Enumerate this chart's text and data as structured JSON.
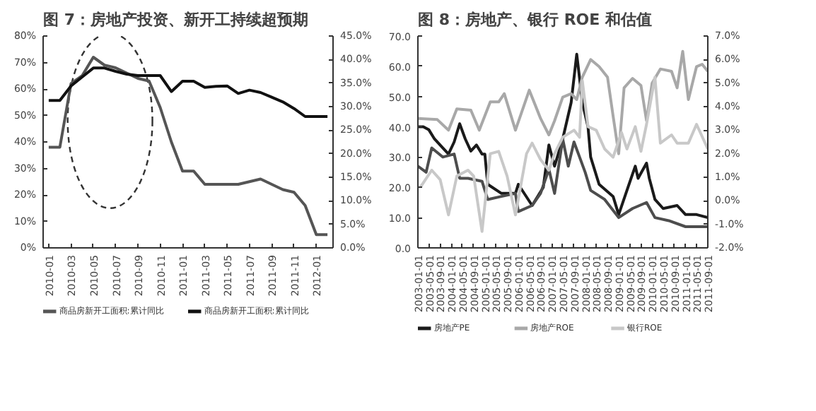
{
  "chart_data": [
    {
      "type": "line",
      "title": "图 7：房地产投资、新开工持续超预期",
      "categories": [
        "2010-01",
        null,
        "2010-03",
        null,
        "2010-05",
        null,
        "2010-07",
        null,
        "2010-09",
        null,
        "2010-11",
        null,
        "2011-01",
        null,
        "2011-03",
        null,
        "2011-05",
        null,
        "2011-07",
        null,
        "2011-09",
        null,
        "2011-11",
        null,
        "2012-01",
        null
      ],
      "series": [
        {
          "name": "商品房新开工面积:累计同比",
          "color": "#555555",
          "values": [
            38,
            38,
            62,
            65,
            72,
            69,
            68,
            66,
            64,
            63,
            53,
            40,
            29,
            29,
            24,
            24,
            24,
            24,
            25,
            26,
            24,
            22,
            21,
            16,
            5,
            5
          ]
        },
        {
          "name": "商品房新开工面积:累计同比",
          "color": "#111111",
          "axis": "y2",
          "values": [
            31.3,
            31.3,
            34.4,
            36.3,
            38.2,
            38.2,
            37.5,
            36.9,
            36.6,
            36.6,
            36.6,
            33.2,
            35.4,
            35.4,
            34.1,
            34.3,
            34.4,
            32.8,
            33.5,
            33,
            32,
            31,
            29.6,
            27.9,
            27.9,
            27.9
          ]
        }
      ],
      "ylim": [
        0,
        80
      ],
      "yticks": [
        {
          "value": 0,
          "label": "0%"
        },
        {
          "value": 10,
          "label": "10%"
        },
        {
          "value": 20,
          "label": "20%"
        },
        {
          "value": 30,
          "label": "30%"
        },
        {
          "value": 40,
          "label": "40%"
        },
        {
          "value": 50,
          "label": "50%"
        },
        {
          "value": 60,
          "label": "60%"
        },
        {
          "value": 70,
          "label": "70%"
        },
        {
          "value": 80,
          "label": "80%"
        }
      ],
      "y2lim": [
        0,
        45
      ],
      "y2ticks": [
        {
          "value": 0,
          "label": "0.0%"
        },
        {
          "value": 5,
          "label": "5.0%"
        },
        {
          "value": 10,
          "label": "10.0%"
        },
        {
          "value": 15,
          "label": "15.0%"
        },
        {
          "value": 20,
          "label": "20.0%"
        },
        {
          "value": 25,
          "label": "25.0%"
        },
        {
          "value": 30,
          "label": "30.0%"
        },
        {
          "value": 35,
          "label": "35.0%"
        },
        {
          "value": 40,
          "label": "40.0%"
        },
        {
          "value": 45,
          "label": "45.0%"
        }
      ],
      "legend": "bottom",
      "grid": false
    },
    {
      "type": "line",
      "title": "图 8：房地产、银行 ROE 和估值",
      "series": [
        {
          "name": "房地产PE",
          "color": "#1a1a1a",
          "x": [
            "2003-01",
            "2003-03",
            "2003-05",
            "2003-07",
            "2003-10",
            "2003-12",
            "2004-02",
            "2004-04",
            "2004-06",
            "2004-08",
            "2004-10",
            "2004-12",
            "2005-01",
            "2005-02",
            "2005-07",
            "2005-12",
            "2006-01",
            "2006-06",
            "2006-10",
            "2006-12",
            "2007-02",
            "2007-05",
            "2007-08",
            "2007-10",
            "2007-11",
            "2007-12",
            "2008-02",
            "2008-03",
            "2008-06",
            "2008-11",
            "2009-01",
            "2009-04",
            "2009-07",
            "2009-08",
            "2009-11",
            "2009-12",
            "2010-02",
            "2010-05",
            "2010-10",
            "2011-01",
            "2011-05",
            "2011-09"
          ],
          "values": [
            40,
            40,
            39,
            36,
            33,
            31,
            35,
            41,
            36,
            32,
            34,
            31,
            31,
            21,
            18,
            18,
            21,
            14,
            20,
            34,
            27,
            36,
            48,
            64,
            56,
            48,
            40,
            30,
            21,
            17,
            11,
            19,
            27,
            23,
            28,
            23,
            16,
            13,
            14,
            11,
            11,
            10
          ]
        },
        {
          "color": "#4d4d4d",
          "x": [
            "2003-01",
            "2003-04",
            "2003-06",
            "2003-10",
            "2004-02",
            "2004-04",
            "2004-07",
            "2004-12",
            "2005-02",
            "2005-07",
            "2005-12",
            "2006-01",
            "2006-06",
            "2006-09",
            "2006-12",
            "2007-02",
            "2007-05",
            "2007-07",
            "2007-09",
            "2007-11",
            "2008-01",
            "2008-03",
            "2008-08",
            "2009-01",
            "2009-06",
            "2009-11",
            "2010-02",
            "2010-07",
            "2011-01",
            "2011-09"
          ],
          "values": [
            27,
            25,
            33,
            30,
            31,
            23,
            23,
            22,
            16,
            17,
            18,
            12,
            14,
            18,
            26,
            18,
            36,
            27,
            35,
            30,
            25,
            19,
            16,
            10,
            13,
            15,
            10,
            9,
            7,
            7
          ]
        },
        {
          "name": "房地产ROE",
          "color": "#a8a8a8",
          "axis": "y2",
          "x": [
            "2003-01",
            "2003-08",
            "2003-12",
            "2004-03",
            "2004-08",
            "2004-11",
            "2005-03",
            "2005-06",
            "2005-08",
            "2005-12",
            "2006-05",
            "2006-09",
            "2006-12",
            "2007-02",
            "2007-05",
            "2007-08",
            "2007-10",
            "2007-12",
            "2008-03",
            "2008-06",
            "2008-09",
            "2008-11",
            "2009-01",
            "2009-03",
            "2009-06",
            "2009-09",
            "2009-11",
            "2010-01",
            "2010-04",
            "2010-08",
            "2010-10",
            "2010-12",
            "2011-02",
            "2011-05",
            "2011-07",
            "2011-09"
          ],
          "values": [
            3.5,
            3.45,
            3.0,
            3.9,
            3.85,
            3.0,
            4.2,
            4.2,
            4.55,
            3.0,
            4.7,
            3.5,
            2.8,
            3.4,
            4.4,
            4.55,
            4.3,
            5.25,
            6.0,
            5.7,
            5.25,
            3.6,
            2.0,
            4.8,
            5.2,
            4.9,
            3.4,
            5.0,
            5.6,
            5.5,
            4.8,
            6.35,
            4.3,
            5.7,
            5.8,
            5.5
          ]
        },
        {
          "name": "银行ROE",
          "color": "#c8c8c8",
          "axis": "y2",
          "x": [
            "2003-02",
            "2003-06",
            "2003-09",
            "2003-12",
            "2004-03",
            "2004-07",
            "2004-09",
            "2004-12",
            "2005-03",
            "2005-06",
            "2005-09",
            "2005-12",
            "2006-04",
            "2006-06",
            "2006-09",
            "2006-12",
            "2007-02",
            "2007-05",
            "2007-09",
            "2007-11",
            "2007-12",
            "2008-02",
            "2008-05",
            "2008-08",
            "2008-11",
            "2009-02",
            "2009-04",
            "2009-07",
            "2009-09",
            "2009-11",
            "2010-02",
            "2010-04",
            "2010-08",
            "2010-10",
            "2011-02",
            "2011-05",
            "2011-09"
          ],
          "values": [
            0.6,
            1.3,
            0.9,
            -0.6,
            1.05,
            1.3,
            1.05,
            -1.3,
            2.0,
            2.1,
            1.05,
            -0.6,
            2.0,
            2.45,
            1.75,
            1.3,
            2.0,
            2.7,
            3.0,
            2.7,
            5.1,
            3.15,
            3.0,
            2.2,
            1.85,
            2.9,
            2.2,
            3.15,
            2.1,
            3.25,
            5.25,
            2.45,
            2.8,
            2.45,
            2.45,
            3.25,
            2.2
          ]
        }
      ],
      "xlim": [
        "2003-01-01",
        "2011-09-01"
      ],
      "xticks": [
        "2003-01-01",
        "2003-05-01",
        "2003-09-01",
        "2004-01-01",
        "2004-05-01",
        "2004-09-01",
        "2005-01-01",
        "2005-05-01",
        "2005-09-01",
        "2006-01-01",
        "2006-05-01",
        "2006-09-01",
        "2007-01-01",
        "2007-05-01",
        "2007-09-01",
        "2008-01-01",
        "2008-05-01",
        "2008-09-01",
        "2009-01-01",
        "2009-05-01",
        "2009-09-01",
        "2010-01-01",
        "2010-05-01",
        "2010-09-01",
        "2011-01-01",
        "2011-05-01",
        "2011-09-01"
      ],
      "ylim": [
        0,
        70
      ],
      "yticks": [
        {
          "value": 0,
          "label": "0.0"
        },
        {
          "value": 10,
          "label": "10.0"
        },
        {
          "value": 20,
          "label": "20.0"
        },
        {
          "value": 30,
          "label": "30.0"
        },
        {
          "value": 40,
          "label": "40.0"
        },
        {
          "value": 50,
          "label": "50.0"
        },
        {
          "value": 60,
          "label": "60.0"
        },
        {
          "value": 70,
          "label": "70.0"
        }
      ],
      "y2lim": [
        -2,
        7
      ],
      "y2ticks": [
        {
          "value": -2,
          "label": "-2.0%"
        },
        {
          "value": -1,
          "label": "-1.0%"
        },
        {
          "value": 0,
          "label": "0.0%"
        },
        {
          "value": 1,
          "label": "1.0%"
        },
        {
          "value": 2,
          "label": "2.0%"
        },
        {
          "value": 3,
          "label": "3.0%"
        },
        {
          "value": 4,
          "label": "4.0%"
        },
        {
          "value": 5,
          "label": "5.0%"
        },
        {
          "value": 6,
          "label": "6.0%"
        },
        {
          "value": 7,
          "label": "7.0%"
        }
      ],
      "legend": "bottom",
      "grid": false
    }
  ]
}
